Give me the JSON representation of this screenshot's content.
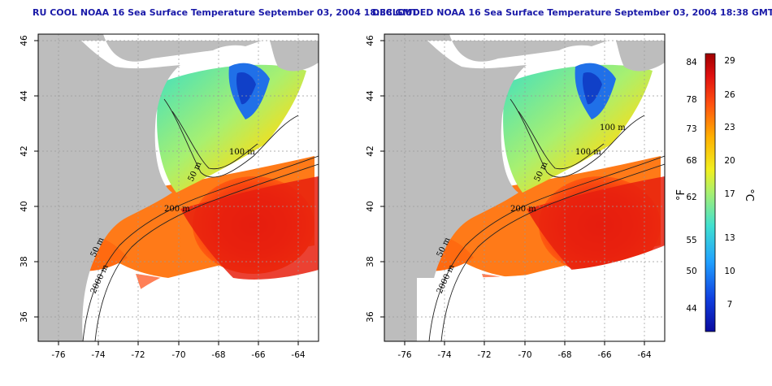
{
  "panels": [
    {
      "title": "RU COOL NOAA 16 Sea Surface Temperature September 03, 2004 18:38 GMT",
      "contour_labels": [
        "100 m",
        "50 m",
        "200 m",
        "50 m",
        "2000 m"
      ]
    },
    {
      "title": "DECLOUDED NOAA 16 Sea Surface Temperature September 03, 2004 18:38 GMT",
      "contour_labels": [
        "100 m",
        "100 m",
        "50 m",
        "200 m",
        "50 m",
        "2000 m"
      ]
    }
  ],
  "axes": {
    "x_ticks": [
      "-76",
      "-74",
      "-72",
      "-70",
      "-68",
      "-66",
      "-64"
    ],
    "y_ticks": [
      "36",
      "38",
      "40",
      "42",
      "44",
      "46"
    ]
  },
  "colorbar": {
    "fahrenheit_label": "°F",
    "celsius_label": "°C",
    "fahrenheit_ticks": [
      "84",
      "78",
      "73",
      "68",
      "62",
      "55",
      "50",
      "44"
    ],
    "celsius_ticks": [
      "29",
      "26",
      "23",
      "20",
      "17",
      "13",
      "10",
      "7"
    ]
  },
  "colors": {
    "land": "#bdbdbd",
    "cloud": "#ffffff",
    "cold": "#0a0a9e",
    "warm": "#b80000",
    "title": "#1a1aa8"
  }
}
